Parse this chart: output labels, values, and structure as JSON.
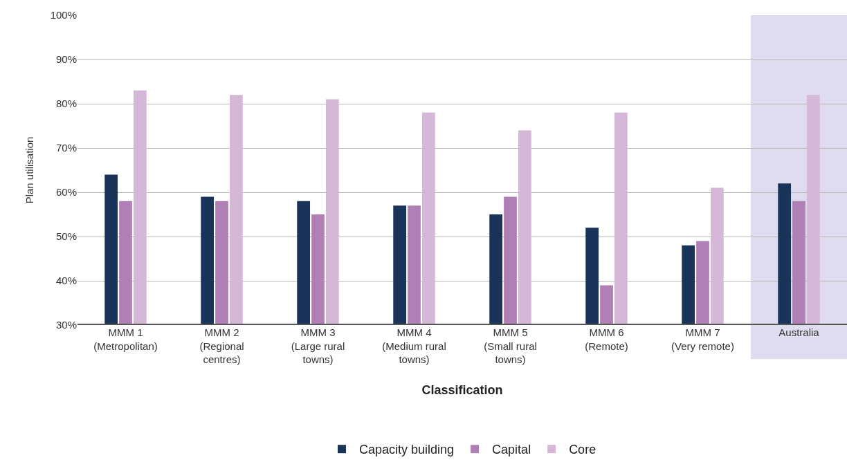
{
  "chart_data": {
    "type": "bar",
    "xlabel": "Classification",
    "ylabel": "Plan utilisation",
    "categories": [
      "MMM 1\n(Metropolitan)",
      "MMM 2\n(Regional\ncentres)",
      "MMM 3\n(Large rural\ntowns)",
      "MMM 4\n(Medium rural\ntowns)",
      "MMM 5\n(Small rural\ntowns)",
      "MMM 6\n(Remote)",
      "MMM 7\n(Very remote)",
      "Australia"
    ],
    "series": [
      {
        "name": "Capacity building",
        "color": "#1a3358",
        "values": [
          64,
          59,
          58,
          57,
          55,
          52,
          48,
          62
        ]
      },
      {
        "name": "Capital",
        "color": "#b07fb5",
        "values": [
          58,
          58,
          55,
          57,
          59,
          39,
          49,
          58
        ]
      },
      {
        "name": "Core",
        "color": "#d5b8d8",
        "values": [
          83,
          82,
          81,
          78,
          74,
          78,
          61,
          82
        ]
      }
    ],
    "ylim": [
      30,
      100
    ],
    "yticks": [
      {
        "value": 30,
        "label": "30%"
      },
      {
        "value": 40,
        "label": "40%"
      },
      {
        "value": 50,
        "label": "50%"
      },
      {
        "value": 60,
        "label": "60%"
      },
      {
        "value": 70,
        "label": "70%"
      },
      {
        "value": 80,
        "label": "80%"
      },
      {
        "value": 90,
        "label": "90%"
      },
      {
        "value": 100,
        "label": "100%"
      }
    ],
    "bands": [
      {
        "axis": "x",
        "from": "Australia",
        "to": "Australia",
        "color": "#dedcee"
      }
    ],
    "grid": "y",
    "legend": "bottom"
  }
}
